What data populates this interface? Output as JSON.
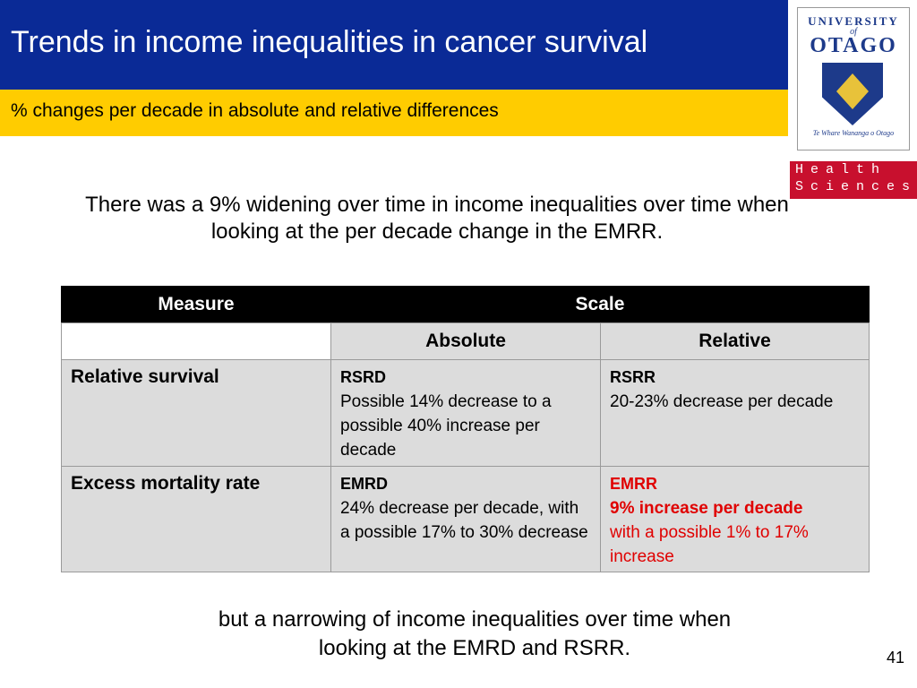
{
  "header": {
    "title": "Trends in income inequalities in cancer survival",
    "subtitle": "% changes per decade in absolute and relative differences"
  },
  "logo": {
    "university": "UNIVERSITY",
    "of": "of",
    "name": "OTAGO",
    "motto": "Te Whare Wananga o Otago",
    "faculty": [
      "Health",
      "Sciences"
    ]
  },
  "intro": "There was a 9% widening over time in income inequalities over time when looking at the per decade change in the EMRR.",
  "table": {
    "columns": [
      "Measure",
      "Scale"
    ],
    "subcolumns": [
      "Absolute",
      "Relative"
    ],
    "rows": [
      {
        "measure": "Relative survival",
        "absolute": {
          "label": "RSRD",
          "text": "Possible 14% decrease to a possible 40% increase per decade"
        },
        "relative": {
          "label": "RSRR",
          "text": "20-23% decrease per decade"
        }
      },
      {
        "measure": "Excess mortality rate",
        "absolute": {
          "label": "EMRD",
          "text": "24% decrease per decade, with a possible 17% to 30% decrease"
        },
        "relative": {
          "label": "EMRR",
          "emphasis": "9% increase per decade",
          "text": "with a possible 1% to 17% increase"
        }
      }
    ]
  },
  "conclusion": "but a narrowing of income inequalities over time when looking at the EMRD and RSRR.",
  "page_number": "41"
}
